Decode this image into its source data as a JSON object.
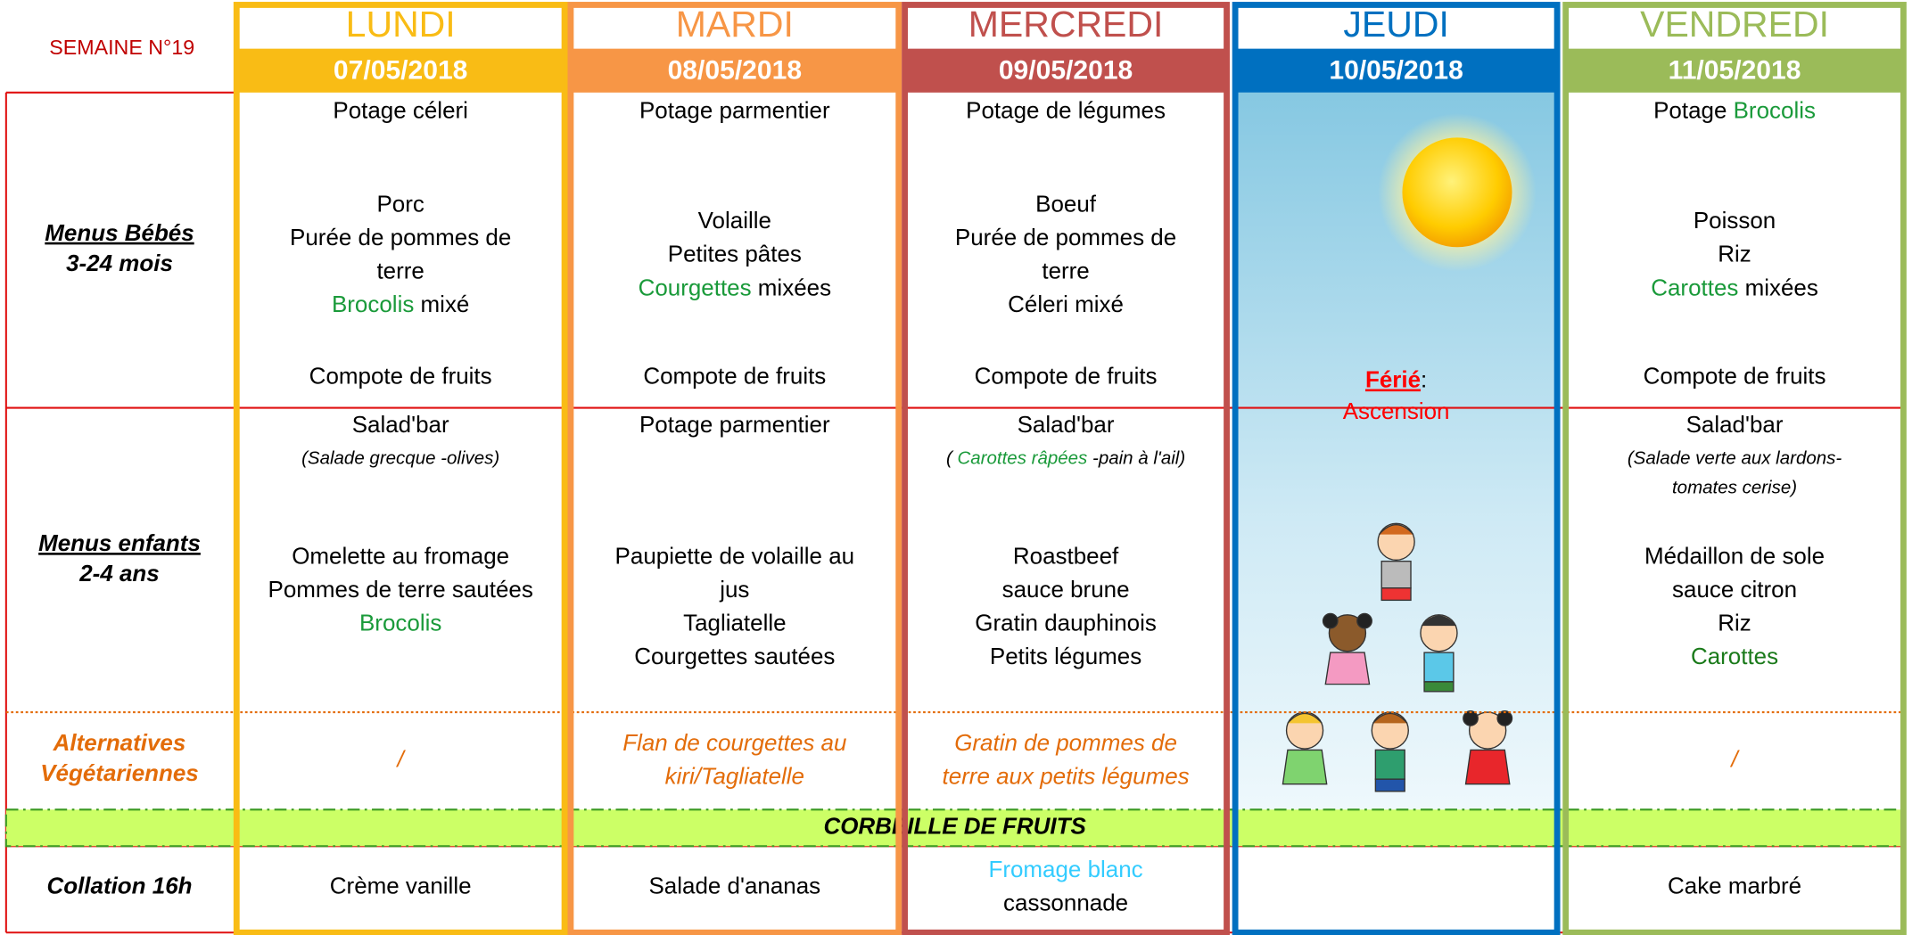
{
  "week": "SEMAINE N°19",
  "days": [
    {
      "name": "LUNDI",
      "date": "07/05/2018",
      "color": "#f9bc15"
    },
    {
      "name": "MARDI",
      "date": "08/05/2018",
      "color": "#f79646"
    },
    {
      "name": "MERCREDI",
      "date": "09/05/2018",
      "color": "#c0504d"
    },
    {
      "name": "JEUDI",
      "date": "10/05/2018",
      "color": "#0070c0"
    },
    {
      "name": "VENDREDI",
      "date": "11/05/2018",
      "color": "#9bbb59"
    }
  ],
  "holiday": {
    "label": "Férié",
    "separator": ":",
    "name": "Ascension",
    "color": "#ff0000"
  },
  "fruit_basket": "CORBEILLE DE FRUITS",
  "rows": [
    {
      "label": [
        "Menus Bébés",
        "3-24 mois"
      ],
      "label_underline": true,
      "cells": [
        {
          "blocks": [
            [
              "Potage céleri"
            ],
            [
              "Porc",
              "Purée de pommes de",
              "terre",
              [
                {
                  "text": "Brocolis",
                  "color": "#1a9a3a"
                },
                " mixé"
              ]
            ],
            [
              "Compote de fruits"
            ]
          ]
        },
        {
          "blocks": [
            [
              "Potage parmentier"
            ],
            [
              "Volaille",
              "Petites pâtes",
              [
                {
                  "text": "Courgettes",
                  "color": "#1a9a3a"
                },
                " mixées"
              ]
            ],
            [
              "Compote de fruits"
            ]
          ]
        },
        {
          "blocks": [
            [
              "Potage de légumes"
            ],
            [
              "Boeuf",
              "Purée de pommes de",
              "terre",
              "Céleri mixé"
            ],
            [
              "Compote de fruits"
            ]
          ]
        },
        null,
        {
          "blocks": [
            [
              [
                "Potage ",
                {
                  "text": "Brocolis",
                  "color": "#1a9a3a"
                }
              ]
            ],
            [
              "Poisson",
              "Riz",
              [
                {
                  "text": "Carottes",
                  "color": "#1a9a3a"
                },
                " mixées"
              ]
            ],
            [
              "Compote de fruits"
            ]
          ]
        }
      ]
    },
    {
      "label": [
        "Menus enfants",
        "2-4 ans"
      ],
      "label_underline": true,
      "cells": [
        {
          "blocks": [
            [
              "Salad'bar",
              [
                {
                  "text": "(Salade grecque -olives)",
                  "italic": true
                }
              ]
            ],
            [
              "Omelette au fromage",
              "Pommes de terre sautées",
              [
                {
                  "text": "Brocolis",
                  "color": "#1a9a3a"
                }
              ]
            ]
          ]
        },
        {
          "blocks": [
            [
              "Potage parmentier"
            ],
            [
              "Paupiette de volaille au",
              "jus",
              "Tagliatelle",
              "Courgettes sautées"
            ]
          ]
        },
        {
          "blocks": [
            [
              "Salad'bar",
              [
                {
                  "text": "( ",
                  "italic": true
                },
                {
                  "text": "Carottes râpées",
                  "color": "#1a9a3a",
                  "italic": true
                },
                {
                  "text": " -pain à l'ail)",
                  "italic": true
                }
              ]
            ],
            [
              "Roastbeef",
              "sauce brune",
              "Gratin dauphinois",
              "Petits légumes"
            ]
          ]
        },
        null,
        {
          "blocks": [
            [
              "Salad'bar",
              [
                {
                  "text": "(Salade verte aux lardons-",
                  "italic": true
                }
              ],
              [
                {
                  "text": "tomates cerise)",
                  "italic": true
                }
              ]
            ],
            [
              "Médaillon de sole",
              "sauce citron",
              "Riz",
              [
                {
                  "text": "Carottes",
                  "color": "#1a7a1a"
                }
              ]
            ]
          ]
        }
      ]
    },
    {
      "label": [
        "Alternatives",
        "Végétariennes"
      ],
      "label_color": "#e36c09",
      "text_color": "#e36c09",
      "italic": true,
      "cells": [
        {
          "blocks": [
            [
              "/"
            ]
          ]
        },
        {
          "blocks": [
            [
              "Flan de courgettes au",
              "kiri/Tagliatelle"
            ]
          ]
        },
        {
          "blocks": [
            [
              "Gratin de pommes de",
              "terre aux petits légumes"
            ]
          ]
        },
        null,
        {
          "blocks": [
            [
              "/"
            ]
          ]
        }
      ]
    },
    {
      "label": [
        "Collation 16h"
      ],
      "cells": [
        {
          "blocks": [
            [
              "Crème vanille"
            ]
          ]
        },
        {
          "blocks": [
            [
              "Salade d'ananas"
            ]
          ]
        },
        {
          "blocks": [
            [
              [
                {
                  "text": "Fromage blanc",
                  "color": "#33ccff"
                }
              ],
              "cassonnade"
            ]
          ]
        },
        null,
        {
          "blocks": [
            [
              "Cake marbré"
            ]
          ]
        }
      ]
    }
  ]
}
